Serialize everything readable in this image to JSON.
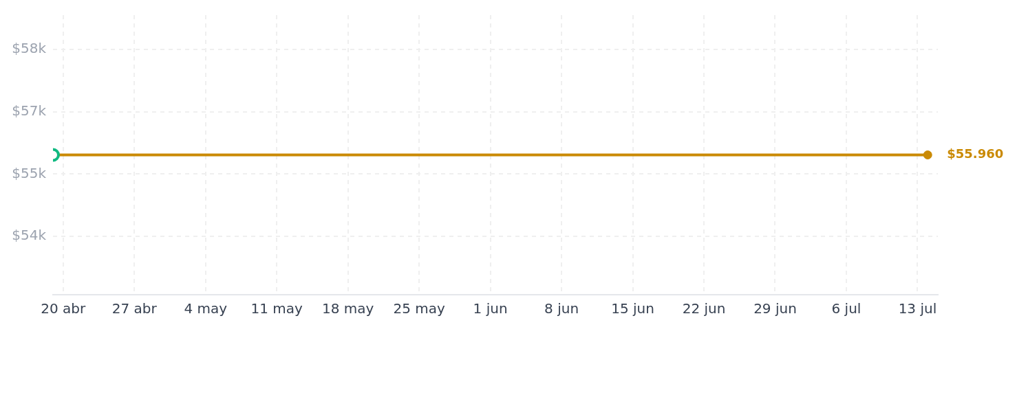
{
  "chart_data": {
    "type": "line",
    "x": [
      "--04-19",
      "--07-14"
    ],
    "series": [
      {
        "color": "#ca8a04",
        "colors": [
          "#10b981",
          "#ca8a04"
        ],
        "values": [
          55960,
          55960
        ],
        "value_labels": [
          null,
          "$55.960"
        ]
      }
    ],
    "xlim": [
      "--04-19",
      "--07-15"
    ],
    "xticks": [
      {
        "value": "--04-20",
        "label": "20 abr"
      },
      {
        "value": "--04-27",
        "label": "27 abr"
      },
      {
        "value": "--05-04",
        "label": "4 may"
      },
      {
        "value": "--05-11",
        "label": "11 may"
      },
      {
        "value": "--05-18",
        "label": "18 may"
      },
      {
        "value": "--05-25",
        "label": "25 may"
      },
      {
        "value": "--06-01",
        "label": "1 jun"
      },
      {
        "value": "--06-08",
        "label": "8 jun"
      },
      {
        "value": "--06-15",
        "label": "15 jun"
      },
      {
        "value": "--06-22",
        "label": "22 jun"
      },
      {
        "value": "--06-29",
        "label": "29 jun"
      },
      {
        "value": "--07-06",
        "label": "6 jul"
      },
      {
        "value": "--07-13",
        "label": "13 jul"
      }
    ],
    "ylim": [
      52600,
      59320
    ],
    "yticks": [
      {
        "value": 54000,
        "label": "$54k"
      },
      {
        "value": 55500,
        "label": "$55k"
      },
      {
        "value": 57000,
        "label": "$57k"
      },
      {
        "value": 58500,
        "label": "$58k"
      }
    ],
    "grid": true,
    "marker": "circle"
  }
}
